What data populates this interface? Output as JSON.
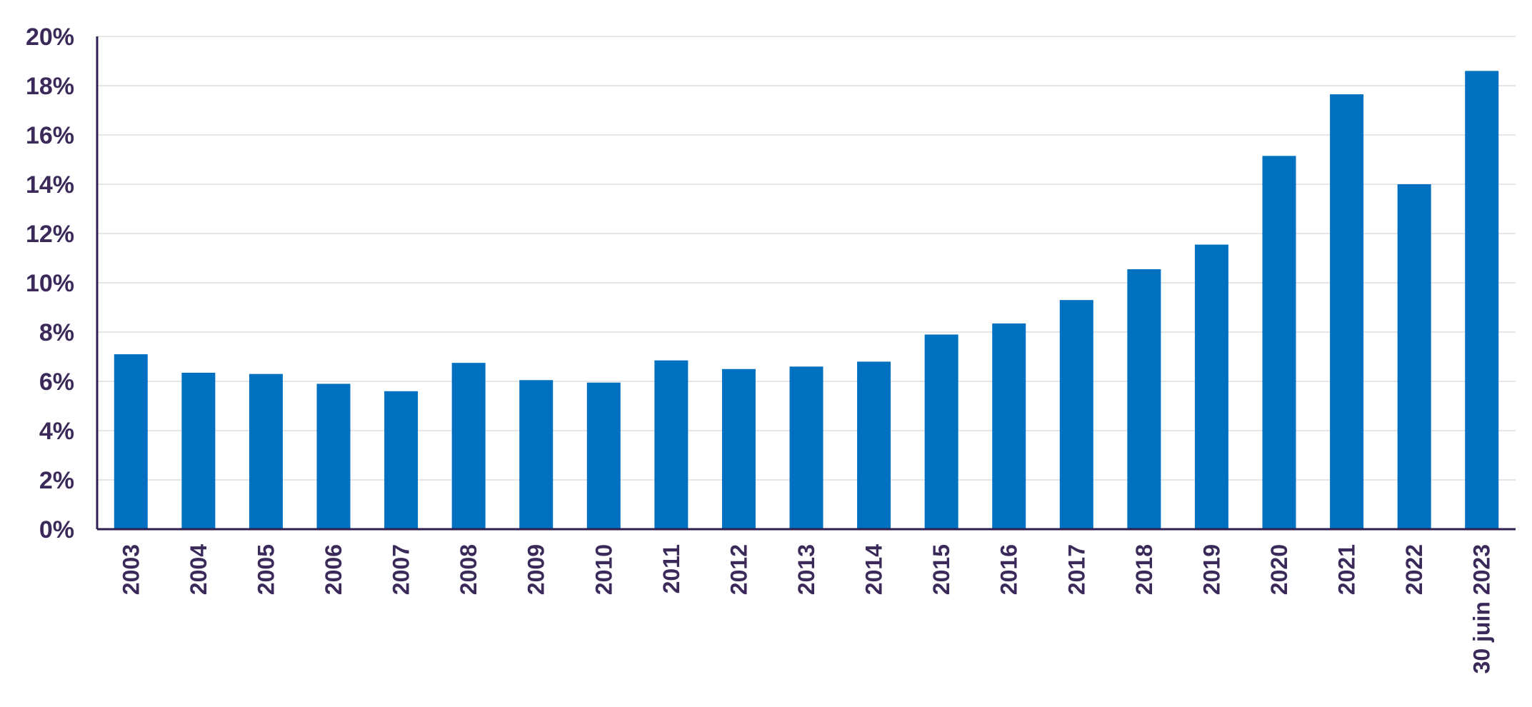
{
  "chart_data": {
    "type": "bar",
    "title": "",
    "xlabel": "",
    "ylabel": "",
    "ylim": [
      0,
      20
    ],
    "yticks": [
      "0%",
      "2%",
      "4%",
      "6%",
      "8%",
      "10%",
      "12%",
      "14%",
      "16%",
      "18%",
      "20%"
    ],
    "grid": true,
    "categories": [
      "2003",
      "2004",
      "2005",
      "2006",
      "2007",
      "2008",
      "2009",
      "2010",
      "2011",
      "2012",
      "2013",
      "2014",
      "2015",
      "2016",
      "2017",
      "2018",
      "2019",
      "2020",
      "2021",
      "2022",
      "30 juin 2023"
    ],
    "values": [
      7.1,
      6.35,
      6.3,
      5.9,
      5.6,
      6.75,
      6.05,
      5.95,
      6.85,
      6.5,
      6.6,
      6.8,
      7.9,
      8.35,
      9.3,
      10.55,
      11.55,
      15.15,
      17.65,
      14.0,
      18.6
    ],
    "colors": {
      "bar": "#0070c0",
      "axis": "#2e1f4f",
      "grid": "#e6e6e6",
      "text": "#3b2a59"
    }
  }
}
